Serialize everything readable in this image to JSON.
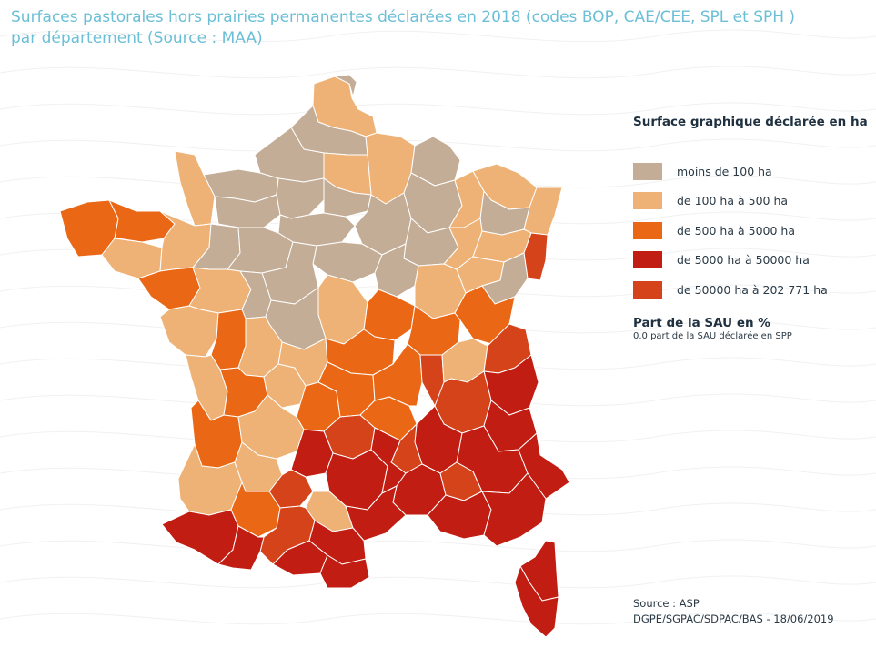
{
  "title": {
    "line1": "Surfaces pastorales hors prairies permanentes déclarées en 2018 (codes BOP, CAE/CEE, SPL et SPH )",
    "line2": "par département (Source : MAA)"
  },
  "colors": {
    "title": "#6bbfd6",
    "class_1": "#c4ad96",
    "class_2": "#efb276",
    "class_3": "#ea6715",
    "class_4": "#c21d12",
    "class_5": "#d5431b",
    "border": "#ffffff"
  },
  "legend": {
    "title": "Surface graphique déclarée en ha",
    "items": [
      {
        "label": "moins de 100 ha",
        "color": "#c4ad96"
      },
      {
        "label": "de 100 ha à 500 ha",
        "color": "#efb276"
      },
      {
        "label": "de 500 ha à 5000 ha",
        "color": "#ea6715"
      },
      {
        "label": "de 5000 ha à 50000 ha",
        "color": "#c21d12"
      },
      {
        "label": "de 50000 ha à 202 771 ha",
        "color": "#d5431b"
      }
    ],
    "sau_title": "Part de la SAU en %",
    "sau_subtitle": "0.0 part de la SAU déclarée en SPP"
  },
  "source": {
    "line1": "Source : ASP",
    "line2": "DGPE/SGPAC/SDPAC/BAS - 18/06/2019"
  }
}
